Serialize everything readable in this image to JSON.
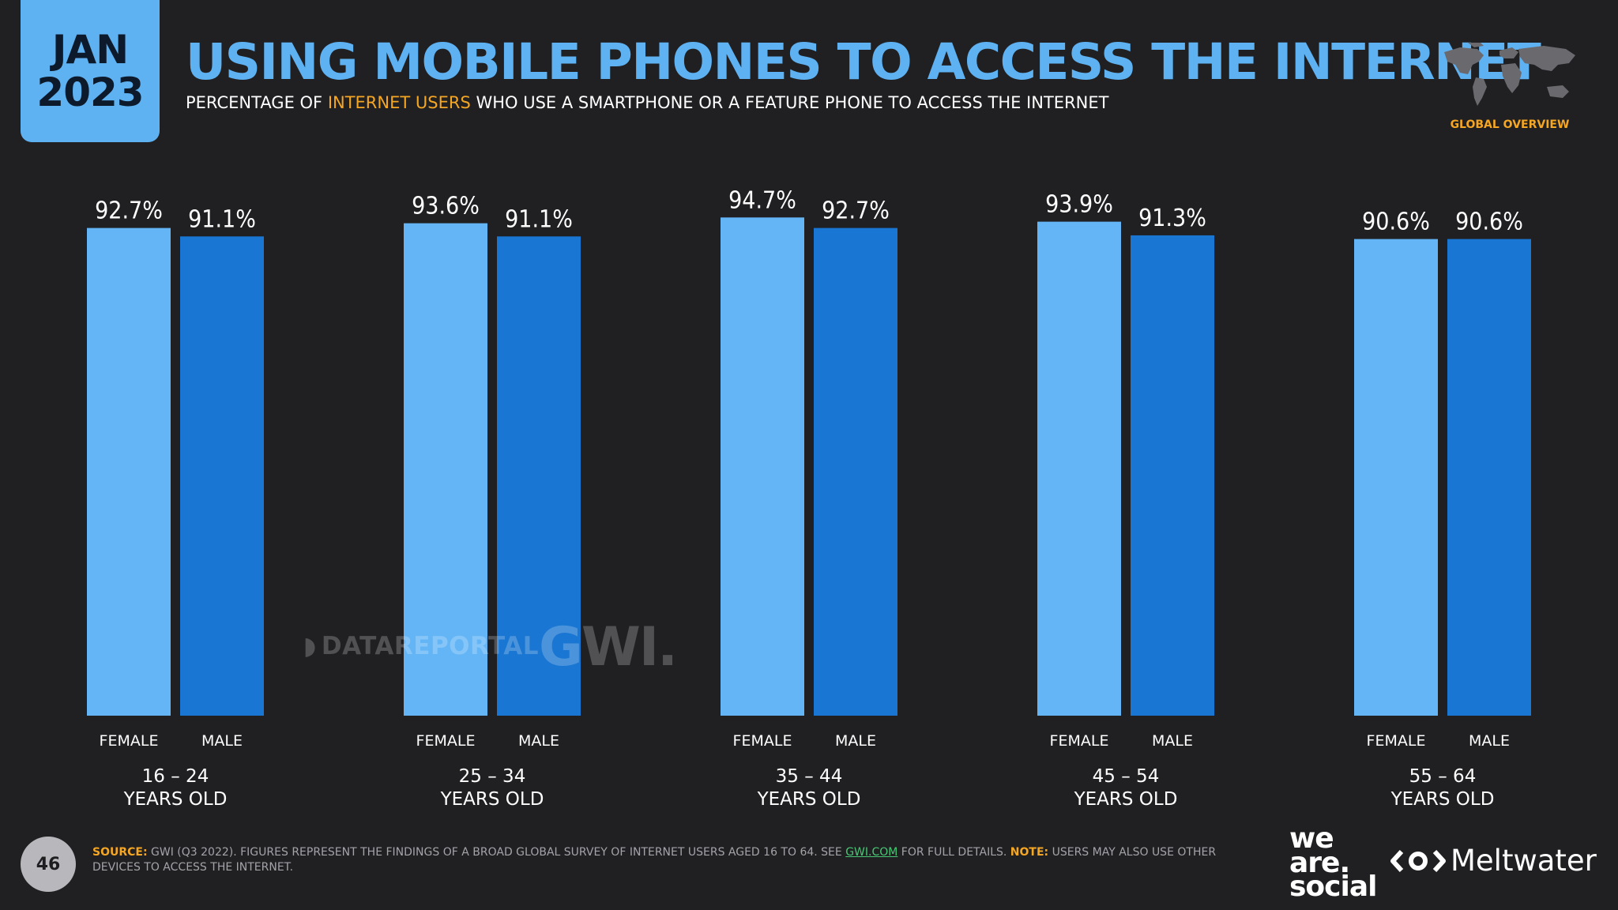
{
  "badge": {
    "month": "JAN",
    "year": "2023"
  },
  "header": {
    "title": "USING MOBILE PHONES TO ACCESS THE INTERNET",
    "subtitle_pre": "PERCENTAGE OF ",
    "subtitle_highlight": "INTERNET USERS",
    "subtitle_post": " WHO USE A SMARTPHONE OR A FEATURE PHONE TO ACCESS THE INTERNET",
    "overview_label": "GLOBAL OVERVIEW"
  },
  "chart_data": {
    "type": "bar",
    "title": "USING MOBILE PHONES TO ACCESS THE INTERNET",
    "categories": [
      "16 – 24 YEARS OLD",
      "25 – 34 YEARS OLD",
      "35 – 44 YEARS OLD",
      "45 – 54 YEARS OLD",
      "55 – 64 YEARS OLD"
    ],
    "groups": [
      {
        "line1": "16 – 24",
        "line2": "YEARS OLD"
      },
      {
        "line1": "25 – 34",
        "line2": "YEARS OLD"
      },
      {
        "line1": "35 – 44",
        "line2": "YEARS OLD"
      },
      {
        "line1": "45 – 54",
        "line2": "YEARS OLD"
      },
      {
        "line1": "55 – 64",
        "line2": "YEARS OLD"
      }
    ],
    "series": [
      {
        "name": "FEMALE",
        "color": "#64b5f6",
        "values": [
          92.7,
          93.6,
          94.7,
          93.9,
          90.6
        ]
      },
      {
        "name": "MALE",
        "color": "#1976d2",
        "values": [
          91.1,
          91.1,
          92.7,
          91.3,
          90.6
        ]
      }
    ],
    "value_suffix": "%",
    "ylim": [
      0,
      100
    ],
    "xlabel": "",
    "ylabel": "",
    "grid": false,
    "legend": "none"
  },
  "watermarks": {
    "datareportal": "DATAREPORTAL",
    "gwi": "GWI."
  },
  "footer": {
    "page_number": "46",
    "source_label": "SOURCE:",
    "source_text": " GWI (Q3 2022). FIGURES REPRESENT THE FINDINGS OF A BROAD GLOBAL SURVEY OF INTERNET USERS AGED 16 TO 64. SEE ",
    "source_link": "GWI.COM",
    "source_after": " FOR FULL DETAILS. ",
    "note_label": "NOTE:",
    "note_text": " USERS MAY ALSO USE OTHER DEVICES TO ACCESS THE INTERNET.",
    "brand_we_are_social": [
      "we",
      "are.",
      "social"
    ],
    "brand_meltwater": "Meltwater"
  },
  "colors": {
    "background": "#202023",
    "accent_blue": "#5fb2f2",
    "female_bar": "#64b5f6",
    "male_bar": "#1976d2",
    "highlight_orange": "#f5a623",
    "link_green": "#48c774"
  }
}
